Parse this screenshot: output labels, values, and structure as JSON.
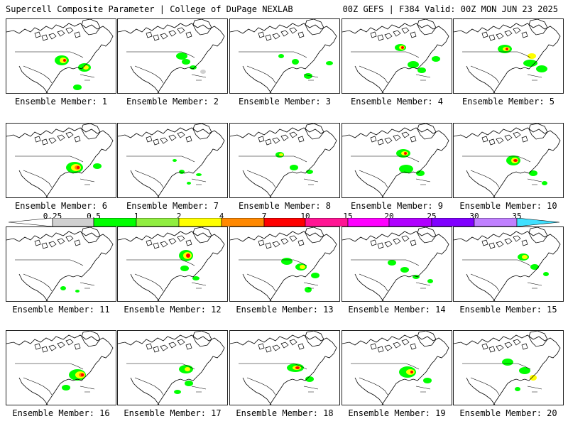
{
  "header": {
    "title_left": "Supercell Composite Parameter | College of DuPage NEXLAB",
    "title_right": "00Z GEFS | F384 Valid: 00Z MON JUN 23 2025"
  },
  "colorbar": {
    "ticks": [
      "0.25",
      "0.5",
      "1",
      "2",
      "4",
      "7",
      "10",
      "15",
      "20",
      "25",
      "30",
      "35"
    ],
    "colors": [
      "#ffffff",
      "#d0d0d0",
      "#00ff00",
      "#90ee40",
      "#ffff00",
      "#ff8800",
      "#ff0000",
      "#ff1493",
      "#ff00ff",
      "#b000ff",
      "#8000ff",
      "#c080ff",
      "#40e0ff"
    ]
  },
  "members": [
    {
      "label": "Ensemble Member: 1"
    },
    {
      "label": "Ensemble Member: 2"
    },
    {
      "label": "Ensemble Member: 3"
    },
    {
      "label": "Ensemble Member: 4"
    },
    {
      "label": "Ensemble Member: 5"
    },
    {
      "label": "Ensemble Member: 6"
    },
    {
      "label": "Ensemble Member: 7"
    },
    {
      "label": "Ensemble Member: 8"
    },
    {
      "label": "Ensemble Member: 9"
    },
    {
      "label": "Ensemble Member: 10"
    },
    {
      "label": "Ensemble Member: 11"
    },
    {
      "label": "Ensemble Member: 12"
    },
    {
      "label": "Ensemble Member: 13"
    },
    {
      "label": "Ensemble Member: 14"
    },
    {
      "label": "Ensemble Member: 15"
    },
    {
      "label": "Ensemble Member: 16"
    },
    {
      "label": "Ensemble Member: 17"
    },
    {
      "label": "Ensemble Member: 18"
    },
    {
      "label": "Ensemble Member: 19"
    },
    {
      "label": "Ensemble Member: 20"
    }
  ]
}
